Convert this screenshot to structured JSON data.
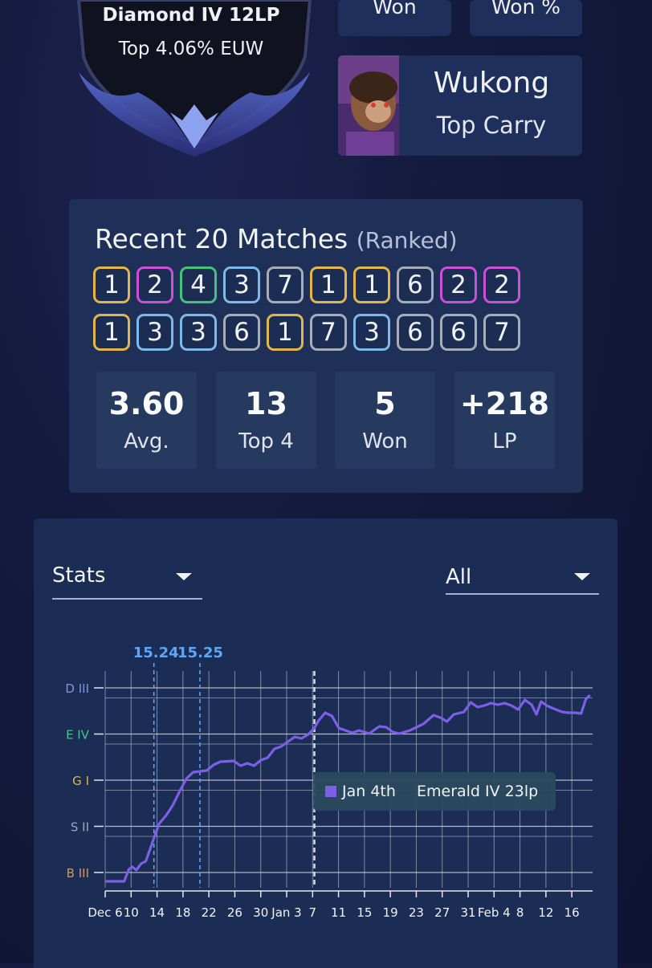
{
  "rank": {
    "tier": "Diamond IV 12LP",
    "percentile": "Top 4.06% EUW"
  },
  "top_cards": [
    {
      "label": "Won"
    },
    {
      "label": "Won %"
    }
  ],
  "champion": {
    "name": "Wukong",
    "role": "Top Carry"
  },
  "recent": {
    "title": "Recent 20 Matches",
    "subtitle": "(Ranked)",
    "placements": [
      [
        1,
        2,
        4,
        3,
        7,
        1,
        1,
        6,
        2,
        2
      ],
      [
        1,
        3,
        3,
        6,
        1,
        7,
        3,
        6,
        6,
        7
      ]
    ],
    "placement_colors": {
      "1": "#e2b64a",
      "2": "#cc4fd8",
      "3": "#7fb8ea",
      "4": "#44c27c",
      "6": "#a7adb8",
      "7": "#a7adb8"
    },
    "stats": [
      {
        "value": "3.60",
        "label": "Avg."
      },
      {
        "value": "13",
        "label": "Top 4"
      },
      {
        "value": "5",
        "label": "Won"
      },
      {
        "value": "+218",
        "label": "LP"
      }
    ]
  },
  "filters": {
    "stats_dropdown": "Stats",
    "range_dropdown": "All"
  },
  "chart_data": {
    "type": "line",
    "x_ticks": [
      "Dec 6",
      "10",
      "14",
      "18",
      "22",
      "26",
      "30",
      "Jan 3",
      "7",
      "11",
      "15",
      "19",
      "23",
      "27",
      "31",
      "Feb 4",
      "8",
      "12",
      "16"
    ],
    "y_ticks": [
      {
        "label": "D III",
        "color": "#7f93d8"
      },
      {
        "label": "E IV",
        "color": "#48c48c"
      },
      {
        "label": "G I",
        "color": "#e3b447"
      },
      {
        "label": "S II",
        "color": "#9aa7bc"
      },
      {
        "label": "B III",
        "color": "#c49a6e"
      }
    ],
    "patch_markers": [
      {
        "label": "15.24",
        "x": 11.2
      },
      {
        "label": "15.25",
        "x": 18
      }
    ],
    "season_marker_x": 34.9,
    "x_range": [
      4,
      76
    ],
    "y_range": [
      0,
      27
    ],
    "series": [
      {
        "color": "#7c5fe6",
        "points": [
          [
            4,
            0.8
          ],
          [
            6,
            0.8
          ],
          [
            6.8,
            0.8
          ],
          [
            7.5,
            2.3
          ],
          [
            8,
            2.6
          ],
          [
            8.6,
            2.2
          ],
          [
            9.3,
            3
          ],
          [
            10,
            3.3
          ],
          [
            11.3,
            6.4
          ],
          [
            12,
            8
          ],
          [
            13,
            9
          ],
          [
            14,
            10.3
          ],
          [
            15,
            12
          ],
          [
            16,
            13.6
          ],
          [
            17,
            14.4
          ],
          [
            18,
            14.5
          ],
          [
            19,
            14.6
          ],
          [
            20,
            15.3
          ],
          [
            21,
            15.7
          ],
          [
            23,
            15.8
          ],
          [
            24,
            15.2
          ],
          [
            25,
            15.5
          ],
          [
            26,
            15.2
          ],
          [
            27,
            15.9
          ],
          [
            28,
            16.2
          ],
          [
            29,
            17.3
          ],
          [
            30,
            17.6
          ],
          [
            31,
            18.2
          ],
          [
            32,
            18.8
          ],
          [
            33,
            18.6
          ],
          [
            34,
            19.1
          ],
          [
            34.9,
            19.9
          ],
          [
            35.5,
            20.8
          ],
          [
            36.5,
            21.8
          ],
          [
            37.5,
            21.4
          ],
          [
            38.5,
            19.9
          ],
          [
            39.5,
            19.6
          ],
          [
            40.5,
            19.3
          ],
          [
            41.5,
            19.6
          ],
          [
            43,
            19.2
          ],
          [
            44.5,
            20.1
          ],
          [
            45.5,
            20
          ],
          [
            46.5,
            19.4
          ],
          [
            47.5,
            19.2
          ],
          [
            49,
            19.6
          ],
          [
            50,
            20
          ],
          [
            51,
            20.4
          ],
          [
            52.5,
            21.5
          ],
          [
            53.5,
            21.2
          ],
          [
            54.5,
            20.7
          ],
          [
            55.5,
            21.6
          ],
          [
            57,
            21.9
          ],
          [
            58,
            23.1
          ],
          [
            59,
            22.5
          ],
          [
            60,
            22.7
          ],
          [
            61,
            23
          ],
          [
            62,
            22.8
          ],
          [
            63,
            23
          ],
          [
            64,
            22.7
          ],
          [
            65,
            22.2
          ],
          [
            66,
            23.4
          ],
          [
            67,
            22.8
          ],
          [
            67.7,
            21.6
          ],
          [
            68.4,
            23.2
          ],
          [
            69.2,
            22.7
          ],
          [
            70,
            22.4
          ],
          [
            71.5,
            21.9
          ],
          [
            72.5,
            21.8
          ],
          [
            73.5,
            21.8
          ],
          [
            74.3,
            21.7
          ],
          [
            75,
            23.5
          ],
          [
            75.6,
            24
          ]
        ]
      }
    ],
    "tooltip": {
      "date": "Jan 4th",
      "value": "Emerald IV 23lp",
      "swatch": "#7c5fe6"
    }
  }
}
